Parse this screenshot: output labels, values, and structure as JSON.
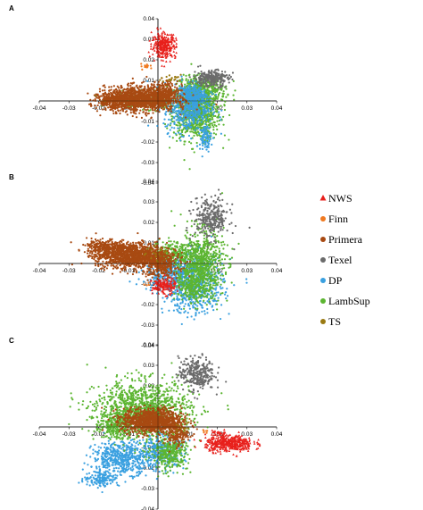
{
  "figure": {
    "panels": [
      "A",
      "B",
      "C"
    ]
  },
  "legend": [
    {
      "name": "NWS",
      "color": "#e8201c",
      "marker": "triangle"
    },
    {
      "name": "Finn",
      "color": "#f07a21",
      "marker": "circle"
    },
    {
      "name": "Primera",
      "color": "#a84a12",
      "marker": "circle"
    },
    {
      "name": "Texel",
      "color": "#6b6b6b",
      "marker": "circle"
    },
    {
      "name": "DP",
      "color": "#3aa0e0",
      "marker": "circle"
    },
    {
      "name": "LambSup",
      "color": "#5cb531",
      "marker": "circle"
    },
    {
      "name": "TS",
      "color": "#9a7a12",
      "marker": "circle"
    }
  ],
  "chart_data": [
    {
      "type": "scatter",
      "panel": "A",
      "title": "",
      "xlim": [
        -0.04,
        0.04
      ],
      "ylim": [
        -0.04,
        0.04
      ],
      "x_ticks": [
        "-0.04",
        "-0.03",
        "-0.02",
        "-0.01",
        "0",
        "0.01",
        "0.02",
        "0.03",
        "0.04"
      ],
      "y_ticks": [
        "0.04",
        "0.03",
        "0.02",
        "0.01",
        "-0.01",
        "-0.02",
        "-0.03",
        "-0.04"
      ],
      "series": [
        {
          "name": "LambSup",
          "clusters": [
            [
              0.013,
              -0.005,
              0.004,
              0.007,
              900
            ],
            [
              0.015,
              0.006,
              0.004,
              0.003,
              300
            ],
            [
              -0.003,
              0.0,
              0.006,
              0.002,
              250
            ]
          ]
        },
        {
          "name": "DP",
          "clusters": [
            [
              0.01,
              -0.003,
              0.004,
              0.006,
              500
            ],
            [
              0.016,
              -0.018,
              0.001,
              0.003,
              80
            ],
            [
              0.012,
              0.003,
              0.002,
              0.002,
              150
            ]
          ]
        },
        {
          "name": "Primera",
          "clusters": [
            [
              -0.006,
              0.001,
              0.006,
              0.003,
              1300
            ],
            [
              -0.015,
              0.0,
              0.003,
              0.002,
              200
            ],
            [
              0.003,
              0.004,
              0.002,
              0.003,
              200
            ]
          ]
        },
        {
          "name": "Texel",
          "clusters": [
            [
              0.018,
              0.011,
              0.003,
              0.002,
              250
            ]
          ]
        },
        {
          "name": "NWS",
          "clusters": [
            [
              0.002,
              0.027,
              0.002,
              0.003,
              300
            ]
          ]
        },
        {
          "name": "Finn",
          "clusters": [
            [
              -0.004,
              0.017,
              0.001,
              0.001,
              15
            ]
          ]
        },
        {
          "name": "TS",
          "clusters": [
            [
              0.005,
              0.011,
              0.002,
              0.001,
              20
            ]
          ]
        }
      ]
    },
    {
      "type": "scatter",
      "panel": "B",
      "title": "",
      "xlim": [
        -0.04,
        0.04
      ],
      "ylim": [
        -0.04,
        0.04
      ],
      "x_ticks": [
        "-0.04",
        "-0.03",
        "-0.02",
        "-0.01",
        "0",
        "0.01",
        "0.02",
        "0.03",
        "0.04"
      ],
      "y_ticks": [
        "0.04",
        "0.03",
        "0.02",
        "0.01",
        "-0.01",
        "-0.02",
        "-0.03",
        "-0.04"
      ],
      "series": [
        {
          "name": "DP",
          "clusters": [
            [
              0.012,
              -0.01,
              0.005,
              0.007,
              700
            ],
            [
              0.003,
              -0.005,
              0.004,
              0.004,
              250
            ]
          ]
        },
        {
          "name": "LambSup",
          "clusters": [
            [
              0.014,
              0.0,
              0.004,
              0.008,
              800
            ],
            [
              0.004,
              0.005,
              0.003,
              0.003,
              200
            ],
            [
              0.012,
              -0.012,
              0.003,
              0.003,
              200
            ]
          ]
        },
        {
          "name": "Primera",
          "clusters": [
            [
              -0.009,
              0.004,
              0.006,
              0.003,
              1200
            ],
            [
              -0.018,
              0.008,
              0.003,
              0.002,
              200
            ],
            [
              0.001,
              -0.001,
              0.003,
              0.003,
              300
            ]
          ]
        },
        {
          "name": "Texel",
          "clusters": [
            [
              0.018,
              0.022,
              0.003,
              0.005,
              300
            ]
          ]
        },
        {
          "name": "NWS",
          "clusters": [
            [
              0.002,
              -0.011,
              0.002,
              0.002,
              150
            ]
          ]
        },
        {
          "name": "Finn",
          "clusters": [
            [
              -0.004,
              -0.01,
              0.0005,
              0.0005,
              4
            ]
          ]
        },
        {
          "name": "TS",
          "clusters": [
            [
              0.0,
              0.004,
              0.002,
              0.002,
              15
            ]
          ]
        }
      ]
    },
    {
      "type": "scatter",
      "panel": "C",
      "title": "",
      "xlim": [
        -0.04,
        0.04
      ],
      "ylim": [
        -0.04,
        0.04
      ],
      "x_ticks": [
        "-0.04",
        "-0.03",
        "-0.02",
        "-0.01",
        "0",
        "0.01",
        "0.02",
        "0.03",
        "0.04"
      ],
      "y_ticks": [
        "0.04",
        "0.03",
        "0.02",
        "0.01",
        "-0.01",
        "-0.02",
        "-0.03",
        "-0.04"
      ],
      "series": [
        {
          "name": "DP",
          "clusters": [
            [
              -0.012,
              -0.015,
              0.005,
              0.004,
              500
            ],
            [
              0.001,
              -0.012,
              0.004,
              0.004,
              300
            ],
            [
              -0.019,
              -0.025,
              0.003,
              0.002,
              150
            ]
          ]
        },
        {
          "name": "LambSup",
          "clusters": [
            [
              -0.005,
              0.008,
              0.008,
              0.007,
              1200
            ],
            [
              0.004,
              -0.013,
              0.003,
              0.004,
              300
            ],
            [
              -0.015,
              0.001,
              0.003,
              0.003,
              200
            ]
          ]
        },
        {
          "name": "Primera",
          "clusters": [
            [
              -0.002,
              0.003,
              0.005,
              0.003,
              1000
            ],
            [
              0.006,
              -0.003,
              0.002,
              0.003,
              200
            ]
          ]
        },
        {
          "name": "Texel",
          "clusters": [
            [
              0.013,
              0.026,
              0.003,
              0.004,
              300
            ]
          ]
        },
        {
          "name": "NWS",
          "clusters": [
            [
              0.024,
              -0.008,
              0.004,
              0.002,
              450
            ],
            [
              0.02,
              -0.003,
              0.001,
              0.001,
              20
            ]
          ]
        },
        {
          "name": "Finn",
          "clusters": [
            [
              0.016,
              -0.002,
              0.0005,
              0.0005,
              6
            ]
          ]
        },
        {
          "name": "TS",
          "clusters": [
            [
              0.008,
              0.0,
              0.002,
              0.002,
              15
            ]
          ]
        }
      ]
    }
  ]
}
